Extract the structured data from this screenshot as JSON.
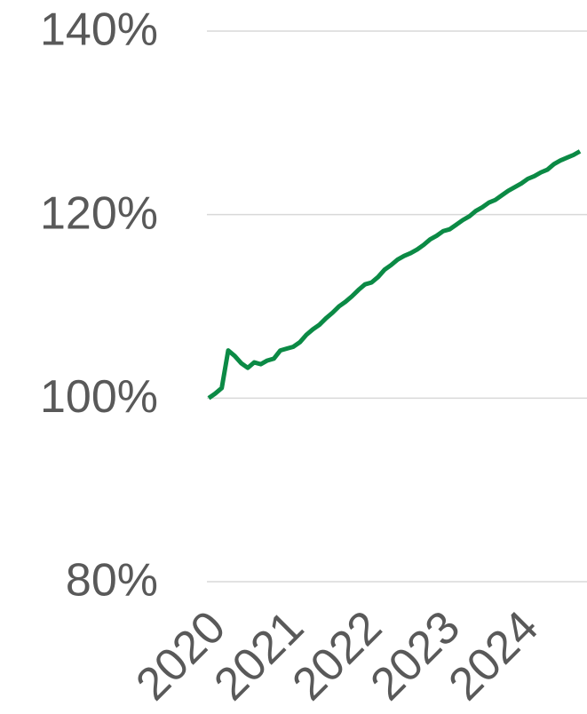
{
  "chart_data": {
    "type": "line",
    "x": [
      2020,
      2020.083,
      2020.167,
      2020.25,
      2020.333,
      2020.417,
      2020.5,
      2020.583,
      2020.667,
      2020.75,
      2020.833,
      2020.917,
      2021,
      2021.083,
      2021.167,
      2021.25,
      2021.333,
      2021.417,
      2021.5,
      2021.583,
      2021.667,
      2021.75,
      2021.833,
      2021.917,
      2022,
      2022.083,
      2022.167,
      2022.25,
      2022.333,
      2022.417,
      2022.5,
      2022.583,
      2022.667,
      2022.75,
      2022.833,
      2022.917,
      2023,
      2023.083,
      2023.167,
      2023.25,
      2023.333,
      2023.417,
      2023.5,
      2023.583,
      2023.667,
      2023.75,
      2023.833,
      2023.917,
      2024,
      2024.083,
      2024.167,
      2024.25,
      2024.333,
      2024.417,
      2024.5,
      2024.583,
      2024.667,
      2024.75
    ],
    "series": [
      {
        "color": "#0b8a45",
        "values": [
          100,
          100.5,
          101.1,
          105.2,
          104.6,
          103.8,
          103.3,
          103.9,
          103.7,
          104.1,
          104.3,
          105.2,
          105.4,
          105.6,
          106.1,
          106.9,
          107.5,
          108.0,
          108.7,
          109.3,
          110.0,
          110.5,
          111.1,
          111.8,
          112.4,
          112.6,
          113.2,
          114.0,
          114.5,
          115.1,
          115.5,
          115.8,
          116.2,
          116.7,
          117.3,
          117.7,
          118.2,
          118.4,
          118.9,
          119.4,
          119.8,
          120.4,
          120.8,
          121.3,
          121.6,
          122.1,
          122.6,
          123.0,
          123.4,
          123.9,
          124.2,
          124.6,
          124.9,
          125.5,
          125.9,
          126.2,
          126.5,
          126.9
        ]
      }
    ],
    "xlim": [
      2020,
      2024.84
    ],
    "xticks": [
      2020,
      2021,
      2022,
      2023,
      2024
    ],
    "ylim": [
      80,
      140
    ],
    "yticks": [
      {
        "value": 80,
        "label": "80%"
      },
      {
        "value": 100,
        "label": "100%"
      },
      {
        "value": 120,
        "label": "120%"
      },
      {
        "value": 140,
        "label": "140%"
      }
    ],
    "grid": true
  }
}
